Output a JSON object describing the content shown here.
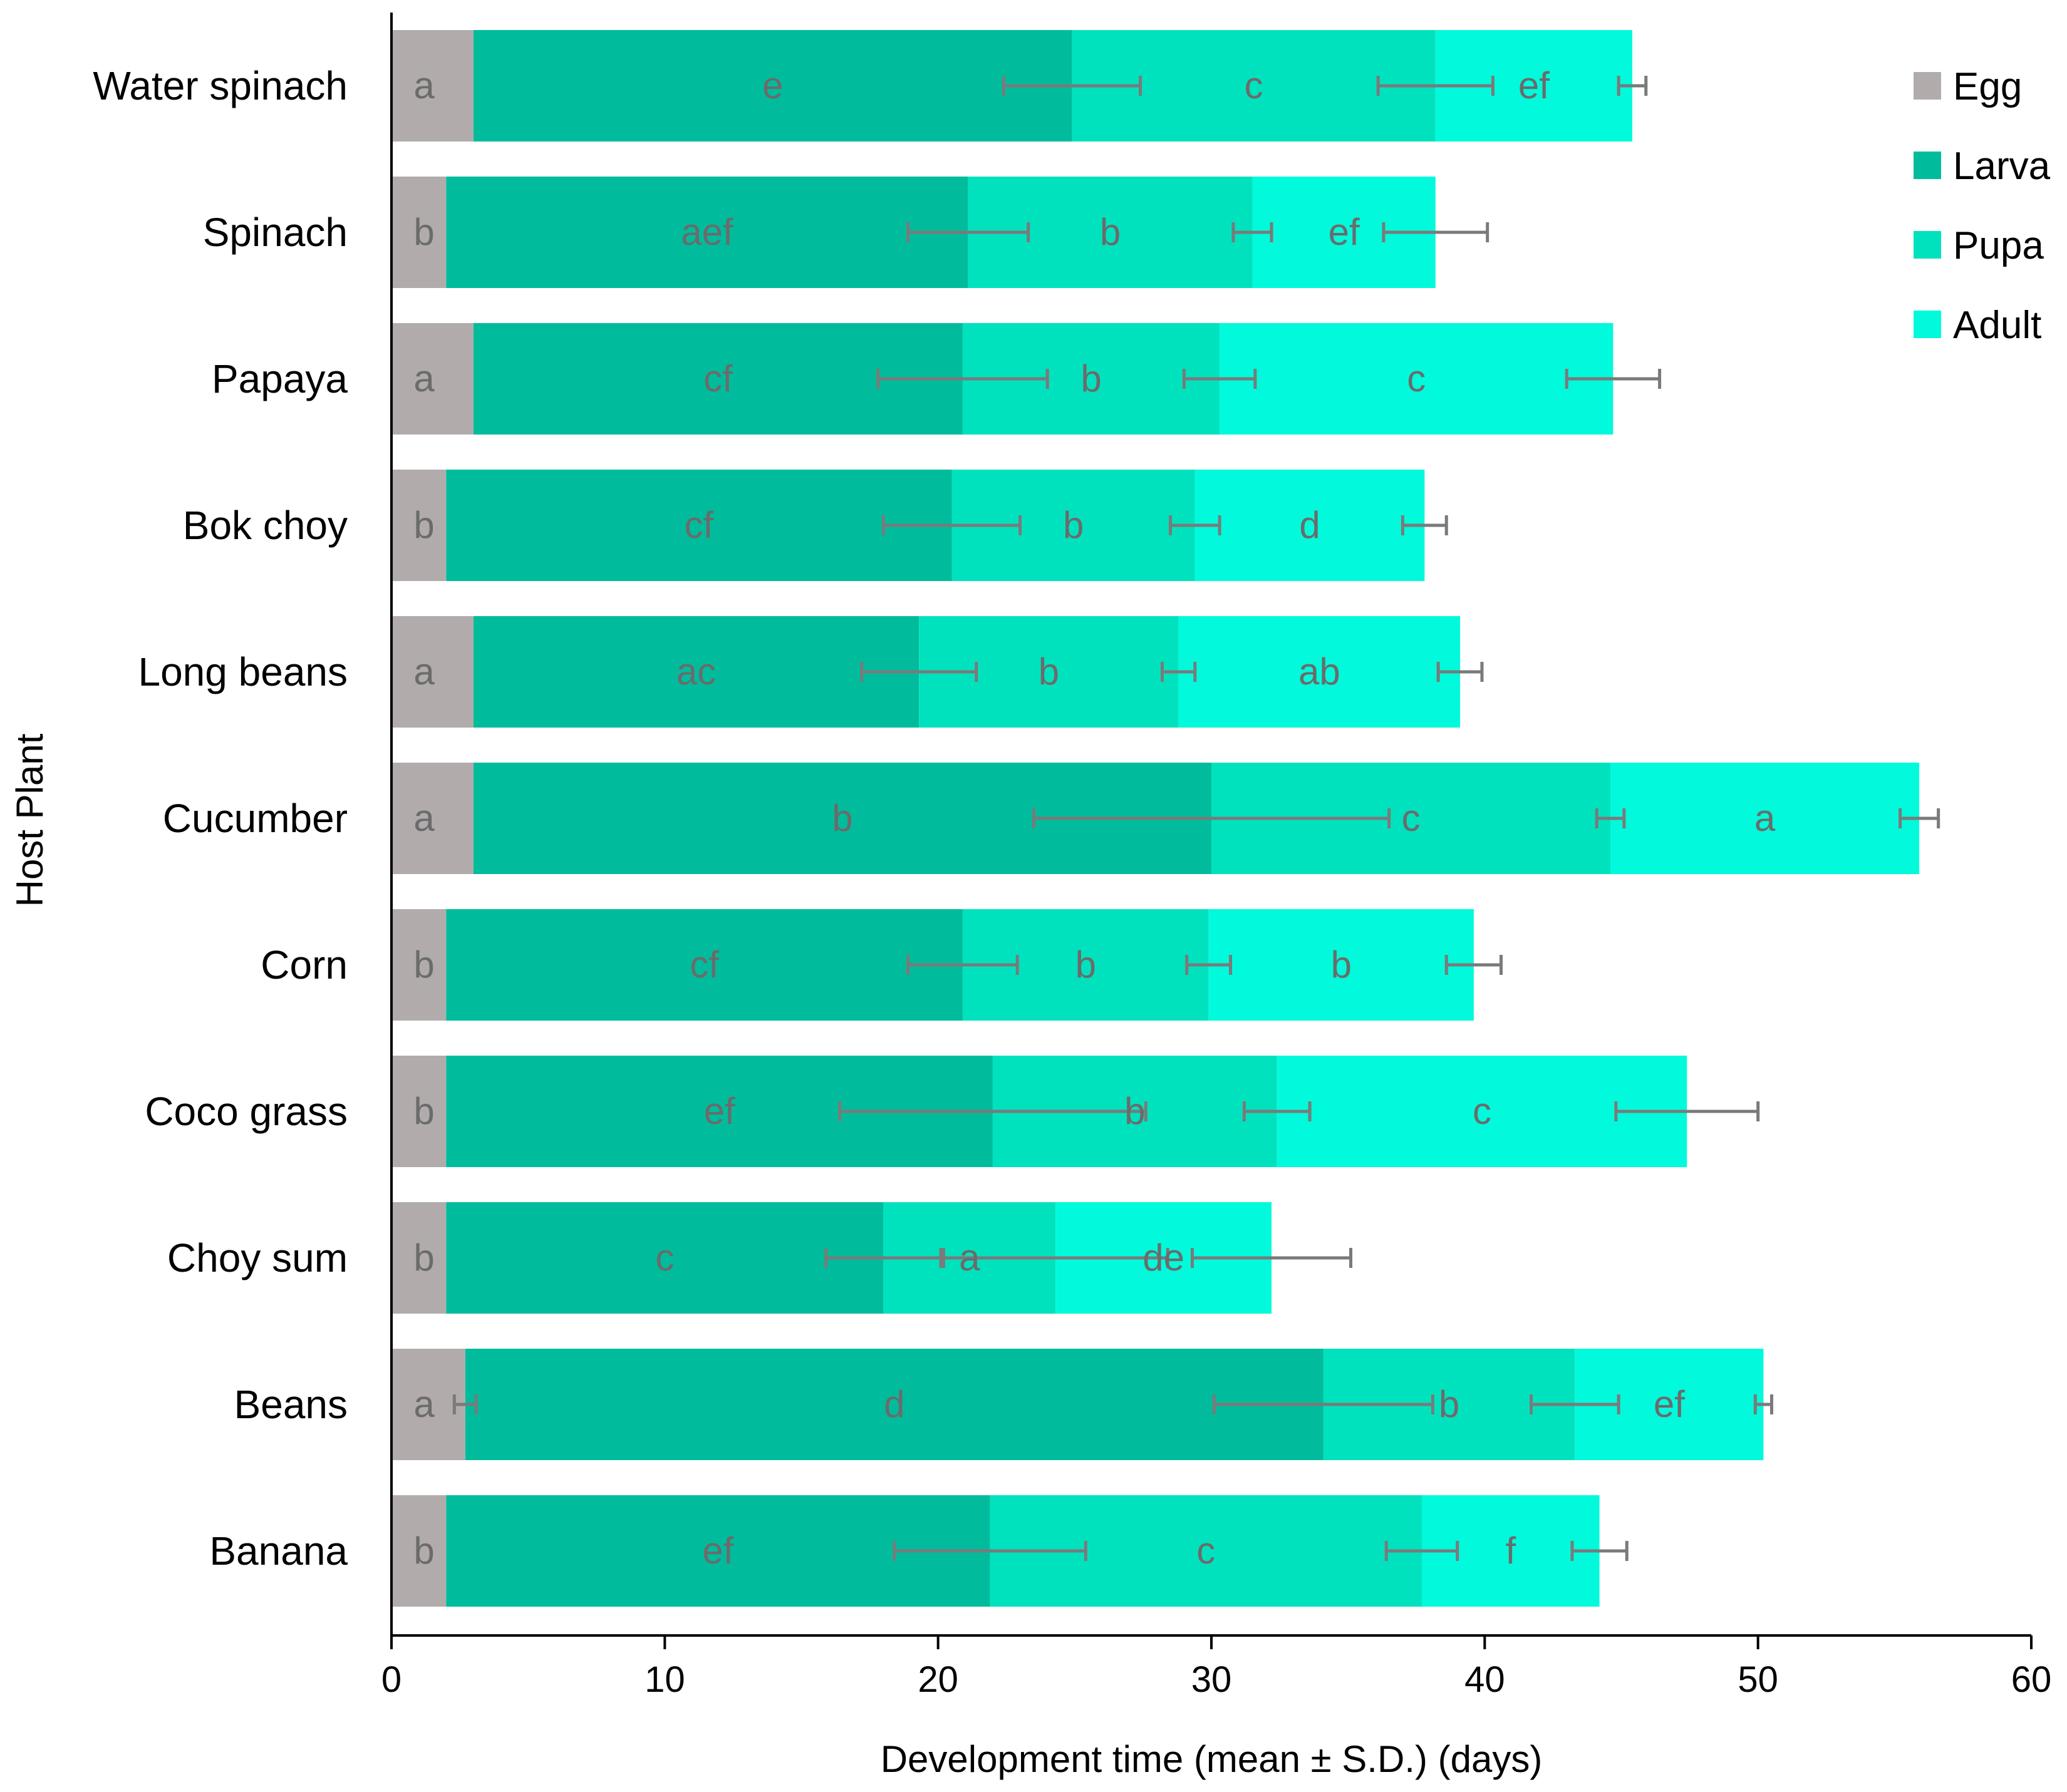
{
  "chart_data": {
    "type": "bar",
    "orientation": "horizontal",
    "stacked": true,
    "title": "",
    "xlabel": "Development time (mean ± S.D.) (days)",
    "ylabel": "Host Plant",
    "xlim": [
      0,
      60
    ],
    "x_ticks": [
      "0",
      "10",
      "20",
      "30",
      "40",
      "50",
      "60"
    ],
    "grid": false,
    "legend_position": "top-right",
    "categories": [
      "Water spinach",
      "Spinach",
      "Papaya",
      "Bok choy",
      "Long beans",
      "Cucumber",
      "Corn",
      "Coco grass",
      "Choy sum",
      "Beans",
      "Banana"
    ],
    "series": [
      {
        "name": "Egg",
        "color": "#b1acab",
        "values": [
          3,
          2,
          3,
          2,
          3,
          3,
          2,
          2,
          2,
          2.7,
          2
        ],
        "sd": [
          0,
          0,
          0,
          0,
          0,
          0,
          0,
          0,
          0,
          0.4,
          0
        ],
        "letters": [
          "a",
          "b",
          "a",
          "b",
          "a",
          "a",
          "b",
          "b",
          "b",
          "a",
          "b"
        ]
      },
      {
        "name": "Larva",
        "color": "#00bc9c",
        "values": [
          21.9,
          19.1,
          17.9,
          18.5,
          16.3,
          27.0,
          18.9,
          20.0,
          16.0,
          31.4,
          19.9
        ],
        "sd": [
          2.5,
          2.2,
          3.1,
          2.5,
          2.1,
          6.5,
          2.0,
          5.6,
          2.1,
          4.0,
          3.5
        ],
        "letters": [
          "e",
          "aef",
          "cf",
          "cf",
          "ac",
          "b",
          "cf",
          "ef",
          "c",
          "d",
          "ef"
        ]
      },
      {
        "name": "Pupa",
        "color": "#00e2be",
        "values": [
          13.3,
          10.4,
          9.4,
          8.9,
          9.5,
          14.6,
          9.0,
          10.4,
          6.3,
          9.2,
          15.8
        ],
        "sd": [
          2.1,
          0.7,
          1.3,
          0.9,
          0.6,
          0.5,
          0.8,
          1.2,
          4.1,
          1.6,
          1.3
        ],
        "letters": [
          "c",
          "b",
          "b",
          "b",
          "b",
          "c",
          "b",
          "b",
          "a",
          "b",
          "c"
        ]
      },
      {
        "name": "Adult",
        "color": "#00fadb",
        "values": [
          7.2,
          6.7,
          14.4,
          8.4,
          10.3,
          11.3,
          9.7,
          15.0,
          7.9,
          6.9,
          6.5
        ],
        "sd": [
          0.5,
          1.9,
          1.7,
          0.8,
          0.8,
          0.7,
          1.0,
          2.6,
          2.9,
          0.3,
          1.0
        ],
        "letters": [
          "ef",
          "ef",
          "c",
          "d",
          "ab",
          "a",
          "b",
          "c",
          "de",
          "ef",
          "f"
        ]
      }
    ]
  }
}
